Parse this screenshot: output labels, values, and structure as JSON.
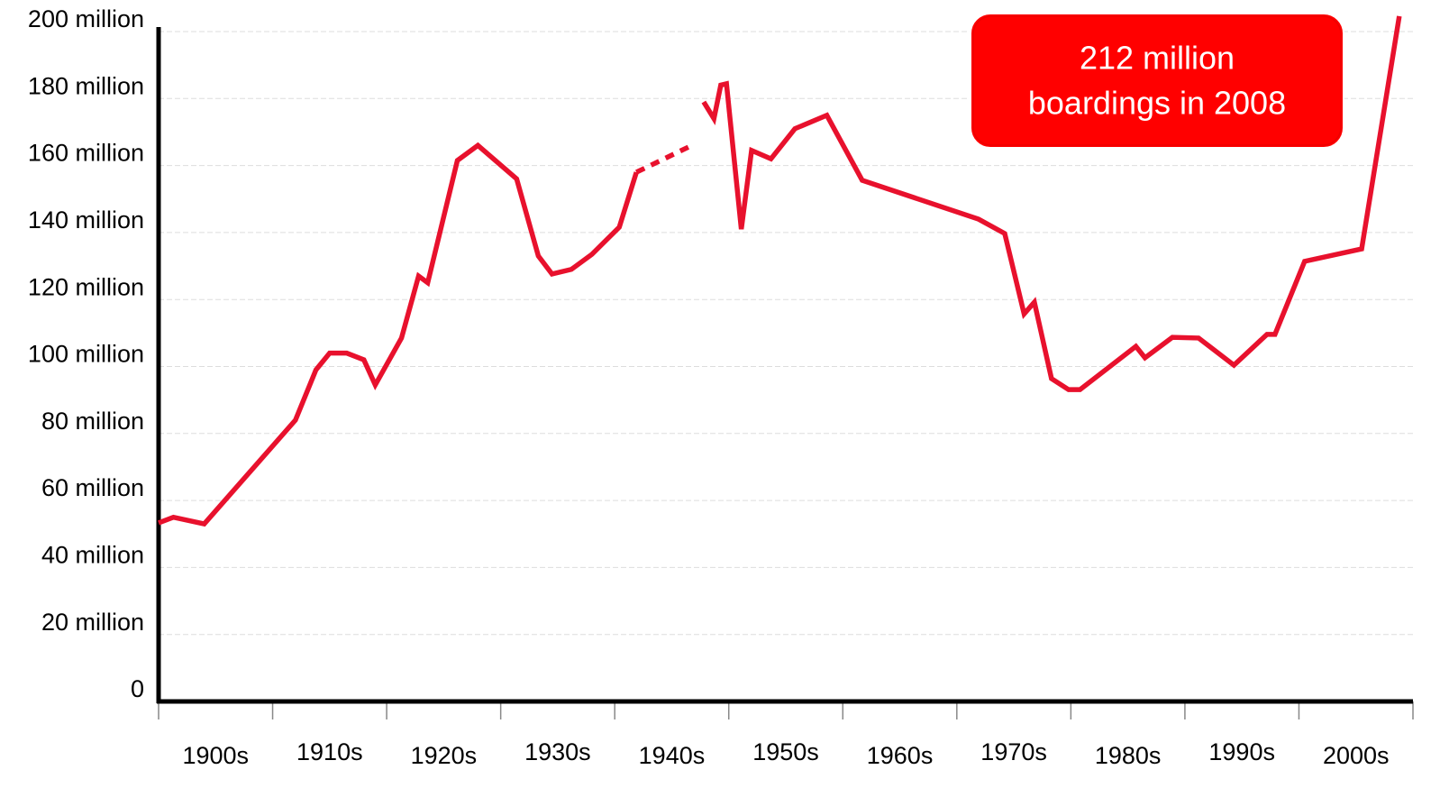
{
  "chart_data": {
    "type": "line",
    "annotation": [
      "212 million",
      "boardings in 2008"
    ],
    "x": [
      1900,
      1901.3,
      1904,
      1912,
      1913.8,
      1915,
      1916.5,
      1918,
      1919,
      1921.3,
      1922.8,
      1923.6,
      1926.2,
      1928,
      1931.4,
      1933.3,
      1934.5,
      1936.2,
      1938,
      1940.4,
      1941.9,
      1947,
      1947.8,
      1948.7,
      1949.3,
      1949.8,
      1951.1,
      1952,
      1953.7,
      1955.8,
      1958.6,
      1961.7,
      1971.9,
      1974.2,
      1975.9,
      1976.8,
      1978.3,
      1979.8,
      1980.8,
      1985.7,
      1986.5,
      1988.9,
      1991.2,
      1994.3,
      1997.2,
      1997.9,
      2000.5,
      2005.5,
      2008.8
    ],
    "series": [
      {
        "color": "#e8112d",
        "dash": false,
        "values": [
          53.3,
          55,
          53,
          84,
          99,
          104,
          104,
          102,
          94.5,
          108.5,
          127,
          125,
          161.5,
          166,
          156,
          133,
          127.6,
          129,
          133.5,
          141.6,
          158,
          null,
          179,
          174,
          184,
          184.4,
          141,
          164.5,
          162,
          171,
          175,
          155.6,
          144,
          139.7,
          115.7,
          119.2,
          96.4,
          93.1,
          93.1,
          106,
          102.6,
          108.7,
          108.5,
          100.4,
          109.6,
          109.6,
          131.4,
          135.1,
          204.6
        ]
      },
      {
        "color": "#e8112d",
        "dash": true,
        "values": [
          null,
          null,
          null,
          null,
          null,
          null,
          null,
          null,
          null,
          null,
          null,
          null,
          null,
          null,
          null,
          null,
          null,
          null,
          null,
          null,
          158,
          166.4,
          null,
          null,
          null,
          null,
          null,
          null,
          null,
          null,
          null,
          null,
          null,
          null,
          null,
          null,
          null,
          null,
          null,
          null,
          null,
          null,
          null,
          null,
          null,
          null,
          null,
          null,
          null
        ]
      }
    ],
    "xlim": [
      1900,
      2010
    ],
    "xticks": [
      1900,
      1910,
      1920,
      1930,
      1940,
      1950,
      1960,
      1970,
      1980,
      1990,
      2000,
      2010
    ],
    "decade_labels": [
      "1900s",
      "1910s",
      "1920s",
      "1930s",
      "1940s",
      "1950s",
      "1960s",
      "1970s",
      "1980s",
      "1990s",
      "2000s"
    ],
    "ylim": [
      0,
      200
    ],
    "yticks": [
      0,
      {
        "value": 20,
        "label": "20 million"
      },
      {
        "value": 40,
        "label": "40 million"
      },
      {
        "value": 60,
        "label": "60 million"
      },
      {
        "value": 80,
        "label": "80 million"
      },
      {
        "value": 100,
        "label": "100 million"
      },
      {
        "value": 120,
        "label": "120 million"
      },
      {
        "value": 140,
        "label": "140 million"
      },
      {
        "value": 160,
        "label": "160 million"
      },
      {
        "value": 180,
        "label": "180 million"
      },
      {
        "value": 200,
        "label": "200 million"
      }
    ],
    "grid": true
  }
}
